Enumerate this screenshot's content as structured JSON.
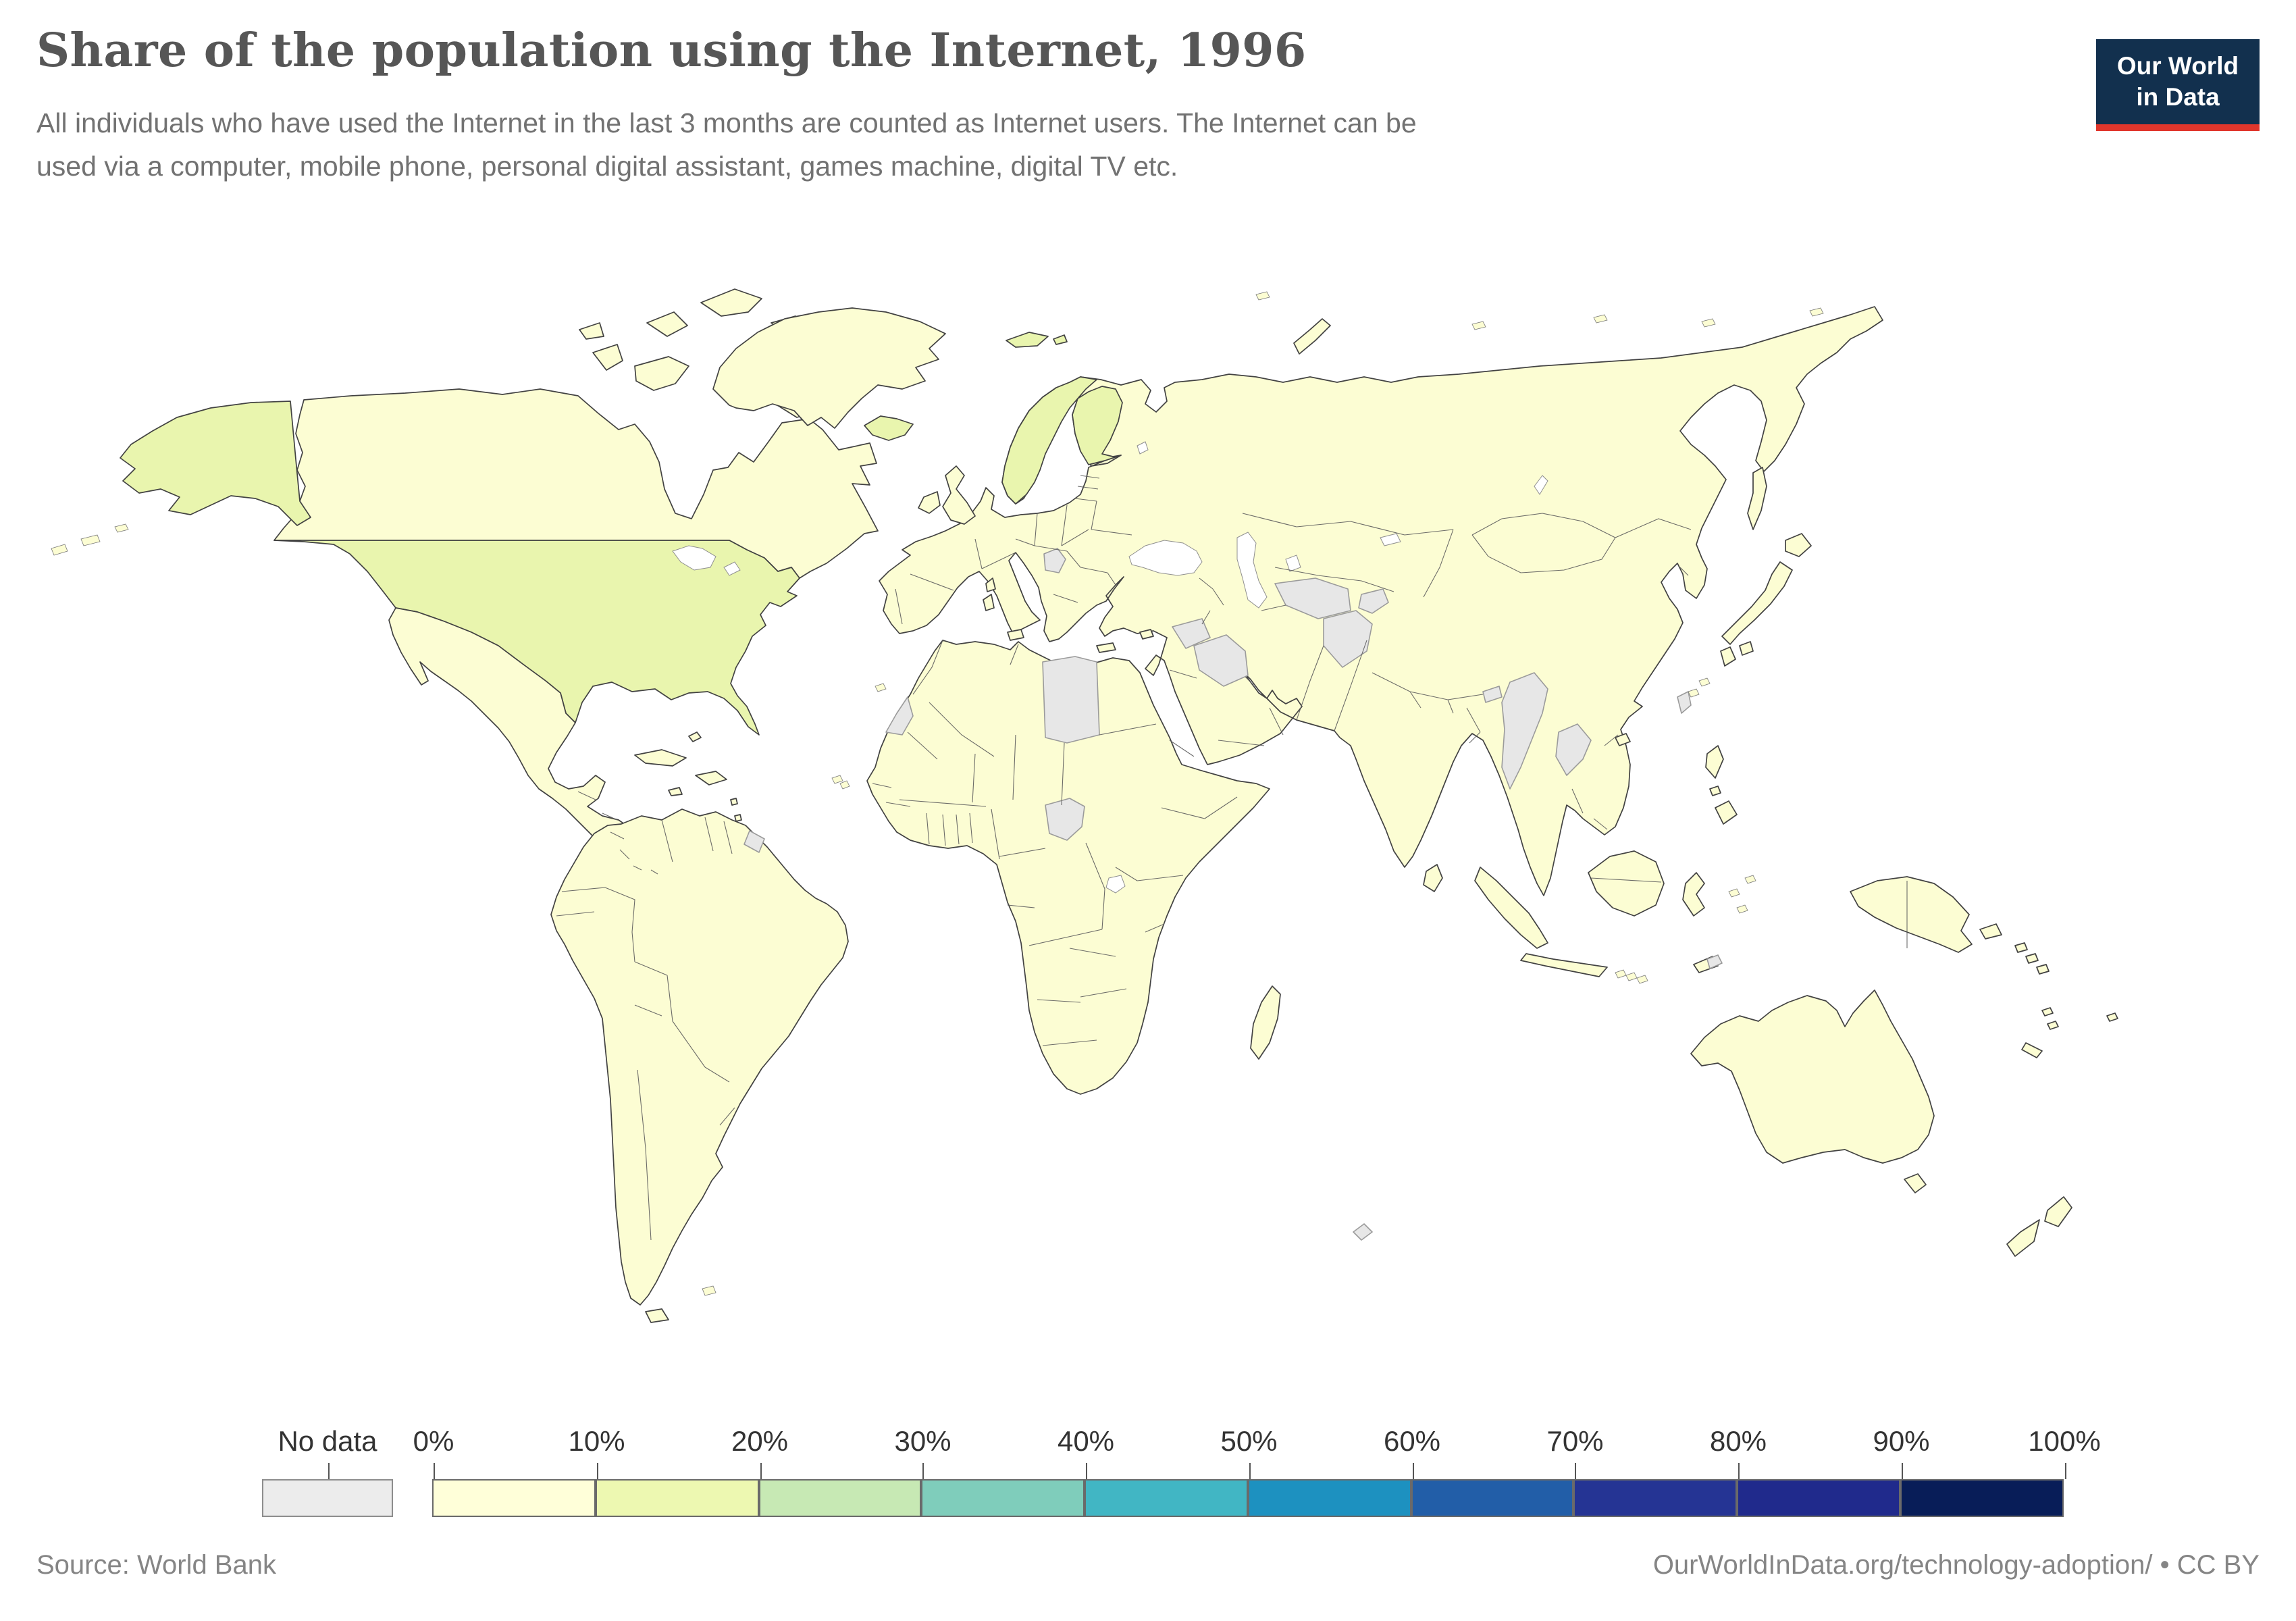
{
  "header": {
    "title": "Share of the population using the Internet, 1996",
    "subtitle_line1": "All individuals who have used the Internet in the last 3 months are counted as Internet users. The Internet can be",
    "subtitle_line2": "used via a computer, mobile phone, personal digital assistant, games machine, digital TV etc."
  },
  "logo": {
    "line1": "Our World",
    "line2": "in Data"
  },
  "legend": {
    "no_data_label": "No data",
    "tick_labels": [
      "0%",
      "10%",
      "20%",
      "30%",
      "40%",
      "50%",
      "60%",
      "70%",
      "80%",
      "90%",
      "100%"
    ]
  },
  "footer": {
    "source": "Source: World Bank",
    "credit": "OurWorldInData.org/technology-adoption/ • CC BY"
  },
  "colors": {
    "scale": [
      "#ffffd9",
      "#edf8b1",
      "#c7e9b4",
      "#7fcdbb",
      "#41b6c4",
      "#1d91c0",
      "#225ea8",
      "#253494",
      "#202a8c",
      "#081d58"
    ],
    "no_data": "#ececec",
    "map_no_data": "#e7e7e7",
    "land_base": "#fcfdd3",
    "land_green": "#e9f5ae",
    "border": "#424242",
    "logo_bg": "#12304e",
    "logo_red": "#e0362c",
    "ocean": "#ffffff"
  },
  "chart_data": {
    "type": "choropleth_map",
    "title": "Share of the population using the Internet, 1996",
    "unit": "% of population",
    "year": 1996,
    "legend_bins": [
      {
        "label": "No data",
        "color": "#ececec"
      },
      {
        "label": "0-10%",
        "color": "#ffffd9"
      },
      {
        "label": "10-20%",
        "color": "#edf8b1"
      },
      {
        "label": "20-30%",
        "color": "#c7e9b4"
      },
      {
        "label": "30-40%",
        "color": "#7fcdbb"
      },
      {
        "label": "40-50%",
        "color": "#41b6c4"
      },
      {
        "label": "50-60%",
        "color": "#1d91c0"
      },
      {
        "label": "60-70%",
        "color": "#225ea8"
      },
      {
        "label": "70-80%",
        "color": "#253494"
      },
      {
        "label": "80-90%",
        "color": "#202a8c"
      },
      {
        "label": "90-100%",
        "color": "#081d58"
      }
    ],
    "countries_10_20_percent": [
      "United States",
      "Iceland",
      "Norway",
      "Finland",
      "Svalbard (Norway)"
    ],
    "countries_no_data": [
      "Western Sahara",
      "Libya",
      "South Sudan",
      "Syria",
      "Iraq",
      "Serbia",
      "Turkmenistan",
      "Tajikistan",
      "Afghanistan",
      "Myanmar",
      "Laos",
      "Bhutan",
      "Taiwan",
      "French Guiana",
      "Timor-Leste",
      "French Southern Territories"
    ],
    "all_other_countries_bin": "0-10%",
    "legend_position": "bottom",
    "source": "World Bank"
  }
}
